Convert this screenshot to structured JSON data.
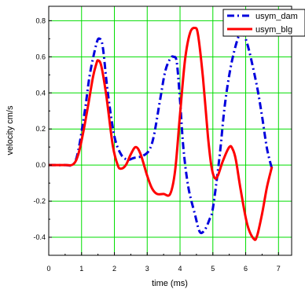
{
  "chart_data": {
    "type": "line",
    "xlabel": "time (ms)",
    "ylabel": "velocity cm/s",
    "xlim": [
      0,
      7.4
    ],
    "ylim": [
      -0.5,
      0.88
    ],
    "xticks": [
      "0",
      "1",
      "2",
      "3",
      "4",
      "5",
      "6",
      "7"
    ],
    "yticks": [
      "-0.4",
      "-0.2",
      "0.0",
      "0.2",
      "0.4",
      "0.6",
      "0.8"
    ],
    "grid": true,
    "grid_color": "#00dd00",
    "legend_position": "top-right",
    "series": [
      {
        "name": "usym_dam",
        "color": "#0000dd",
        "style": "dash-dot",
        "x": [
          0,
          0.5,
          0.75,
          0.9,
          1.1,
          1.25,
          1.45,
          1.55,
          1.65,
          1.8,
          2.0,
          2.2,
          2.4,
          2.6,
          2.85,
          3.05,
          3.2,
          3.4,
          3.55,
          3.7,
          3.8,
          3.9,
          4.0,
          4.1,
          4.25,
          4.45,
          4.6,
          4.75,
          4.9,
          5.0,
          5.2,
          5.35,
          5.5,
          5.65,
          5.8,
          5.9,
          6.0,
          6.15,
          6.35,
          6.5,
          6.65,
          6.8
        ],
        "y": [
          0,
          0,
          0.005,
          0.08,
          0.3,
          0.5,
          0.67,
          0.7,
          0.65,
          0.4,
          0.16,
          0.06,
          0.03,
          0.04,
          0.05,
          0.08,
          0.16,
          0.37,
          0.52,
          0.59,
          0.6,
          0.57,
          0.36,
          0.1,
          -0.12,
          -0.27,
          -0.37,
          -0.36,
          -0.3,
          -0.24,
          0.04,
          0.31,
          0.5,
          0.63,
          0.72,
          0.73,
          0.7,
          0.6,
          0.43,
          0.27,
          0.09,
          -0.02
        ]
      },
      {
        "name": "usym_blg",
        "color": "#ff0000",
        "style": "solid",
        "x": [
          0,
          0.5,
          0.75,
          0.9,
          1.05,
          1.2,
          1.35,
          1.45,
          1.5,
          1.6,
          1.75,
          1.95,
          2.1,
          2.2,
          2.35,
          2.5,
          2.65,
          2.8,
          3.0,
          3.15,
          3.3,
          3.5,
          3.7,
          3.85,
          4.0,
          4.15,
          4.3,
          4.45,
          4.55,
          4.7,
          4.85,
          4.95,
          5.05,
          5.15,
          5.3,
          5.5,
          5.6,
          5.7,
          5.85,
          6.05,
          6.25,
          6.35,
          6.5,
          6.65,
          6.8
        ],
        "y": [
          0,
          0,
          0.005,
          0.06,
          0.18,
          0.33,
          0.49,
          0.56,
          0.58,
          0.55,
          0.39,
          0.11,
          0.0,
          -0.02,
          0.0,
          0.06,
          0.1,
          0.06,
          -0.06,
          -0.13,
          -0.16,
          -0.16,
          -0.16,
          -0.03,
          0.28,
          0.58,
          0.73,
          0.76,
          0.72,
          0.48,
          0.16,
          -0.0,
          -0.07,
          -0.06,
          0.02,
          0.1,
          0.09,
          0.03,
          -0.14,
          -0.33,
          -0.41,
          -0.39,
          -0.27,
          -0.12,
          -0.01
        ]
      }
    ]
  }
}
